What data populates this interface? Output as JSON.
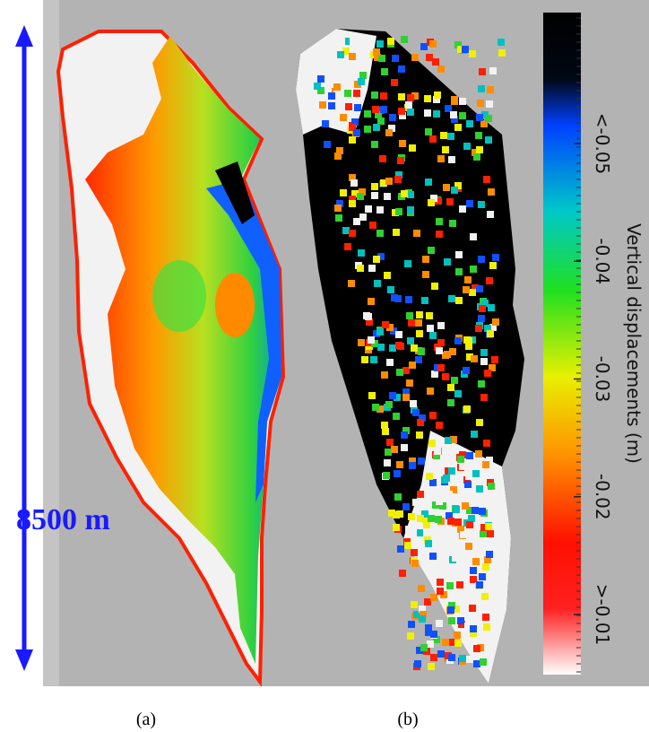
{
  "scale_bar": {
    "label": "8500 m"
  },
  "panels": [
    {
      "label": "(a)"
    },
    {
      "label": "(b)"
    }
  ],
  "colorbar": {
    "title": "Vertical displacements (m)",
    "ticks": [
      {
        "value": -0.05,
        "label": "<-0.05"
      },
      -0.04,
      -0.03,
      -0.02,
      {
        "value": -0.01,
        "label": ">-0.01"
      }
    ]
  }
}
